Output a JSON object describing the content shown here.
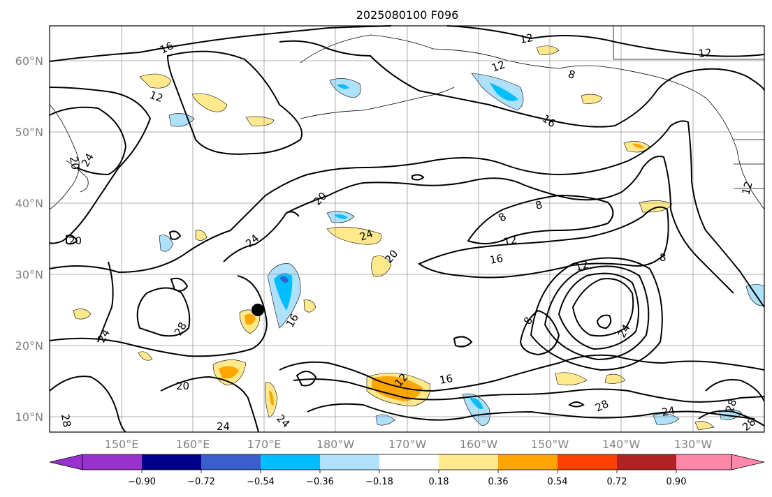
{
  "title": "2025080100 F096",
  "lat_labels": [
    "60°N",
    "50°N",
    "40°N",
    "30°N",
    "20°N",
    "10°N"
  ],
  "lon_labels": [
    "150°E",
    "160°E",
    "170°E",
    "180°W",
    "170°W",
    "160°W",
    "150°W",
    "140°W",
    "130°W"
  ],
  "colorbar": {
    "tick_labels": [
      "−0.90",
      "−0.72",
      "−0.54",
      "−0.36",
      "−0.18",
      "0.18",
      "0.36",
      "0.54",
      "0.72",
      "0.90"
    ],
    "colors": [
      "#9932cc",
      "#00008b",
      "#3a5fcd",
      "#00bfff",
      "#afe1fa",
      "#ffffff",
      "#ffe98c",
      "#ffa500",
      "#ff4000",
      "#b22222",
      "#ff88aa"
    ]
  },
  "contour_labels": [
    "16",
    "12",
    "24",
    "20",
    "8",
    "28"
  ],
  "marker": {
    "label": "",
    "color": "#000000"
  }
}
